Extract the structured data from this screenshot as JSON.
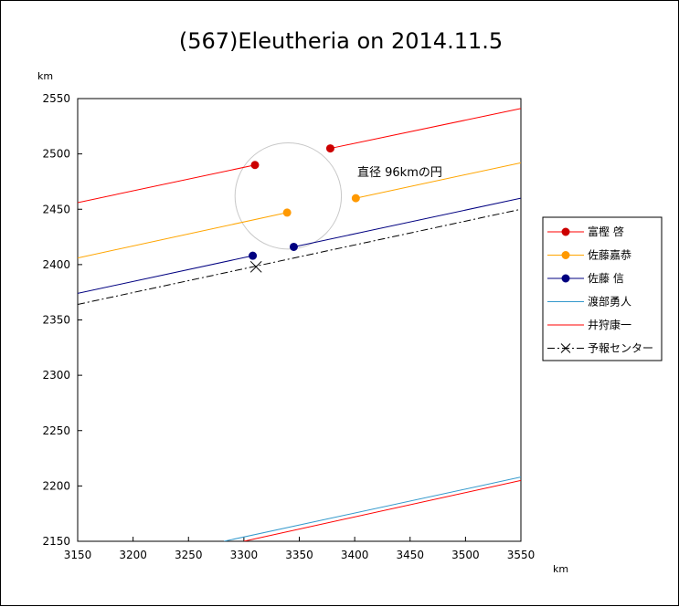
{
  "chart_data": {
    "type": "line",
    "title": "(567)Eleutheria on 2014.11.5",
    "xlabel": "km",
    "ylabel": "km",
    "xlim": [
      3150,
      3550
    ],
    "ylim": [
      2150,
      2550
    ],
    "xticks": [
      3150,
      3200,
      3250,
      3300,
      3350,
      3400,
      3450,
      3500,
      3550
    ],
    "yticks": [
      2150,
      2200,
      2250,
      2300,
      2350,
      2400,
      2450,
      2500,
      2550
    ],
    "grid": false,
    "legend_position": "right",
    "annotation": {
      "text": "直径 96kmの円",
      "circle": {
        "cx": 3340,
        "cy": 2462,
        "r": 48
      }
    },
    "series": [
      {
        "name": "富樫 啓",
        "color": "#ff0000",
        "marker": "dot",
        "marker_color": "#cc0000",
        "segments": [
          [
            [
              3150,
              2456
            ],
            [
              3310,
              2490
            ]
          ],
          [
            [
              3378,
              2505
            ],
            [
              3550,
              2541
            ]
          ]
        ],
        "points": [
          [
            3310,
            2490
          ],
          [
            3378,
            2505
          ]
        ]
      },
      {
        "name": "佐藤嘉恭",
        "color": "#ffa500",
        "marker": "dot",
        "marker_color": "#ff9900",
        "segments": [
          [
            [
              3150,
              2406
            ],
            [
              3339,
              2447
            ]
          ],
          [
            [
              3401,
              2460
            ],
            [
              3550,
              2492
            ]
          ]
        ],
        "points": [
          [
            3339,
            2447
          ],
          [
            3401,
            2460
          ]
        ]
      },
      {
        "name": "佐藤 信",
        "color": "#000080",
        "marker": "dot",
        "marker_color": "#000080",
        "segments": [
          [
            [
              3150,
              2374
            ],
            [
              3308,
              2408
            ]
          ],
          [
            [
              3345,
              2416
            ],
            [
              3550,
              2460
            ]
          ]
        ],
        "points": [
          [
            3308,
            2408
          ],
          [
            3345,
            2416
          ]
        ]
      },
      {
        "name": "渡部勇人",
        "color": "#3399cc",
        "marker": "none",
        "segments": [
          [
            [
              3282,
              2150
            ],
            [
              3550,
              2208
            ]
          ]
        ],
        "points": []
      },
      {
        "name": "井狩康一",
        "color": "#ff0000",
        "marker": "none",
        "segments": [
          [
            [
              3300,
              2150
            ],
            [
              3550,
              2205
            ]
          ]
        ],
        "points": []
      },
      {
        "name": "予報センター",
        "color": "#000000",
        "marker": "x",
        "dash": "8,3,2,3",
        "segments": [
          [
            [
              3150,
              2364
            ],
            [
              3550,
              2450
            ]
          ]
        ],
        "points": [
          [
            3311,
            2398
          ]
        ]
      }
    ]
  }
}
